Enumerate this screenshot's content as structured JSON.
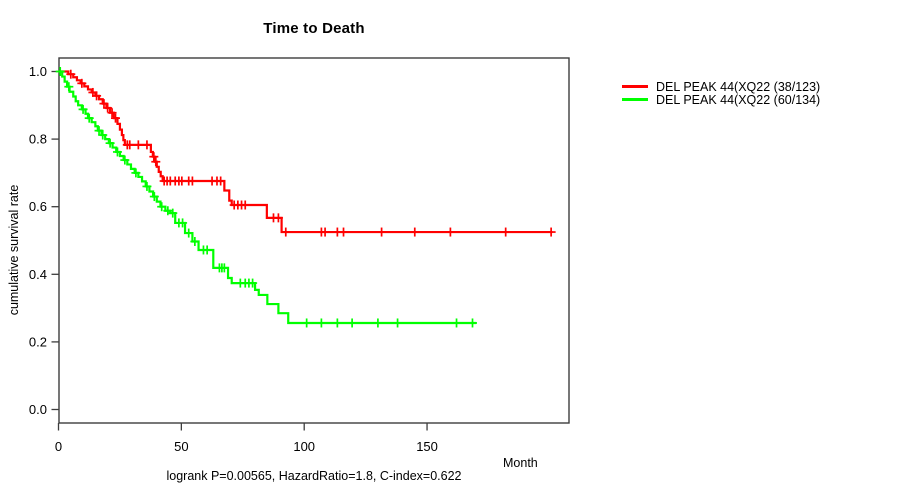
{
  "title": "Time to Death",
  "x_axis_label": "Month",
  "y_axis_label": "cumulative survival rate",
  "footer": "logrank P=0.00565, HazardRatio=1.8, C-index=0.622",
  "colors": {
    "series_red": "#ff0000",
    "series_green": "#00ff00",
    "axis": "#3d3d3d",
    "text": "#000000"
  },
  "legend": {
    "items": [
      {
        "label": "DEL PEAK 44(XQ22 (38/123)",
        "color": "#ff0000"
      },
      {
        "label": "DEL PEAK 44(XQ22 (60/134)",
        "color": "#00ff00"
      }
    ]
  },
  "chart_data": {
    "type": "line",
    "subtype": "kaplan-meier-step",
    "title": "Time to Death",
    "xlabel": "Month",
    "ylabel": "cumulative survival rate",
    "xlim": [
      0,
      207
    ],
    "ylim": [
      0.0,
      1.0
    ],
    "xticks": [
      0,
      50,
      100,
      150
    ],
    "yticks": [
      0.0,
      0.2,
      0.4,
      0.6,
      0.8,
      1.0
    ],
    "grid": false,
    "legend_position": "right-outside",
    "series": [
      {
        "name": "DEL PEAK 44(XQ22 (38/123)",
        "color": "#ff0000",
        "end_month": 201,
        "steps": [
          [
            0,
            1.0
          ],
          [
            4,
            0.992
          ],
          [
            6,
            0.983
          ],
          [
            7.5,
            0.974
          ],
          [
            9,
            0.965
          ],
          [
            10.5,
            0.956
          ],
          [
            12,
            0.947
          ],
          [
            13.5,
            0.938
          ],
          [
            15,
            0.928
          ],
          [
            16.5,
            0.918
          ],
          [
            18,
            0.905
          ],
          [
            19.5,
            0.892
          ],
          [
            21,
            0.878
          ],
          [
            22.5,
            0.862
          ],
          [
            24,
            0.845
          ],
          [
            25,
            0.828
          ],
          [
            25.8,
            0.812
          ],
          [
            26.4,
            0.797
          ],
          [
            27,
            0.783
          ],
          [
            37.6,
            0.762
          ],
          [
            38.4,
            0.748
          ],
          [
            39.2,
            0.733
          ],
          [
            40,
            0.718
          ],
          [
            40.8,
            0.703
          ],
          [
            41.6,
            0.69
          ],
          [
            42.4,
            0.676
          ],
          [
            67.5,
            0.648
          ],
          [
            69.5,
            0.618
          ],
          [
            70.5,
            0.605
          ],
          [
            84.8,
            0.567
          ],
          [
            90.8,
            0.525
          ]
        ],
        "censor_months": [
          5,
          9.5,
          14,
          15.5,
          18.5,
          20,
          21.8,
          23.2,
          28,
          29,
          32.5,
          36,
          38.8,
          39.6,
          43,
          44.2,
          45.5,
          47.5,
          49,
          50.2,
          53,
          54.5,
          62.5,
          64.5,
          66,
          71.5,
          73,
          74.5,
          76,
          87.5,
          89.5,
          92.5,
          107,
          108.5,
          113.5,
          116,
          131.5,
          145,
          159.5,
          182,
          200.5
        ]
      },
      {
        "name": "DEL PEAK 44(XQ22 (60/134)",
        "color": "#00ff00",
        "end_month": 170,
        "steps": [
          [
            0,
            1.0
          ],
          [
            1.5,
            0.985
          ],
          [
            2.5,
            0.97
          ],
          [
            3.5,
            0.955
          ],
          [
            4.5,
            0.94
          ],
          [
            6,
            0.926
          ],
          [
            7,
            0.912
          ],
          [
            8,
            0.9
          ],
          [
            9.5,
            0.888
          ],
          [
            11,
            0.875
          ],
          [
            12,
            0.862
          ],
          [
            13.5,
            0.85
          ],
          [
            15,
            0.838
          ],
          [
            16,
            0.825
          ],
          [
            17.5,
            0.812
          ],
          [
            19,
            0.8
          ],
          [
            20.5,
            0.788
          ],
          [
            22,
            0.775
          ],
          [
            23.5,
            0.762
          ],
          [
            25,
            0.75
          ],
          [
            26.5,
            0.738
          ],
          [
            28,
            0.725
          ],
          [
            29.5,
            0.712
          ],
          [
            31,
            0.7
          ],
          [
            32.5,
            0.688
          ],
          [
            34,
            0.675
          ],
          [
            35.5,
            0.66
          ],
          [
            37,
            0.645
          ],
          [
            38.5,
            0.63
          ],
          [
            40,
            0.615
          ],
          [
            41.5,
            0.6
          ],
          [
            43.5,
            0.588
          ],
          [
            45.5,
            0.581
          ],
          [
            47.5,
            0.552
          ],
          [
            51.5,
            0.522
          ],
          [
            54.5,
            0.497
          ],
          [
            57,
            0.472
          ],
          [
            63,
            0.419
          ],
          [
            69,
            0.389
          ],
          [
            70.5,
            0.374
          ],
          [
            80,
            0.354
          ],
          [
            81.5,
            0.339
          ],
          [
            85,
            0.312
          ],
          [
            89.5,
            0.285
          ],
          [
            93.5,
            0.256
          ]
        ],
        "censor_months": [
          0.7,
          4.2,
          10,
          12.5,
          16.5,
          18,
          21,
          24,
          27,
          31.5,
          36,
          39,
          42,
          44.5,
          46.5,
          49,
          50.5,
          53,
          55.5,
          59,
          60.5,
          65.5,
          66.5,
          67.5,
          74,
          76,
          77.5,
          79,
          101,
          107,
          113.5,
          119.5,
          130,
          138,
          162,
          168.5
        ]
      }
    ]
  }
}
